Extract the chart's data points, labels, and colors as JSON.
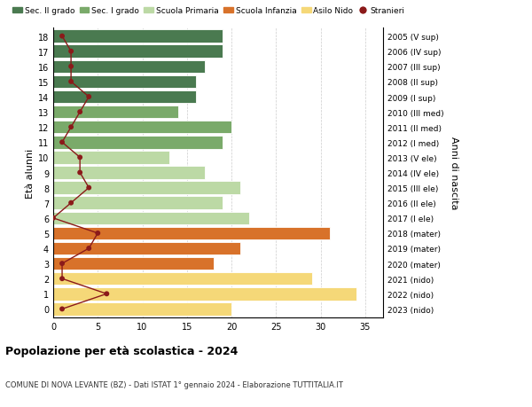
{
  "ages": [
    18,
    17,
    16,
    15,
    14,
    13,
    12,
    11,
    10,
    9,
    8,
    7,
    6,
    5,
    4,
    3,
    2,
    1,
    0
  ],
  "right_labels": [
    "2005 (V sup)",
    "2006 (IV sup)",
    "2007 (III sup)",
    "2008 (II sup)",
    "2009 (I sup)",
    "2010 (III med)",
    "2011 (II med)",
    "2012 (I med)",
    "2013 (V ele)",
    "2014 (IV ele)",
    "2015 (III ele)",
    "2016 (II ele)",
    "2017 (I ele)",
    "2018 (mater)",
    "2019 (mater)",
    "2020 (mater)",
    "2021 (nido)",
    "2022 (nido)",
    "2023 (nido)"
  ],
  "bar_values": [
    19,
    19,
    17,
    16,
    16,
    14,
    20,
    19,
    13,
    17,
    21,
    19,
    22,
    31,
    21,
    18,
    29,
    34,
    20
  ],
  "bar_colors": [
    "#4a7a50",
    "#4a7a50",
    "#4a7a50",
    "#4a7a50",
    "#4a7a50",
    "#7aaa6a",
    "#7aaa6a",
    "#7aaa6a",
    "#bcd9a5",
    "#bcd9a5",
    "#bcd9a5",
    "#bcd9a5",
    "#bcd9a5",
    "#d8722a",
    "#d8722a",
    "#d8722a",
    "#f5d878",
    "#f5d878",
    "#f5d878"
  ],
  "stranieri_x": [
    1,
    2,
    2,
    2,
    4,
    3,
    2,
    1,
    3,
    3,
    4,
    2,
    0,
    5,
    4,
    1,
    1,
    6,
    1
  ],
  "title": "Popolazione per età scolastica - 2024",
  "subtitle": "COMUNE DI NOVA LEVANTE (BZ) - Dati ISTAT 1° gennaio 2024 - Elaborazione TUTTITALIA.IT",
  "xlabel_ticks": [
    0,
    5,
    10,
    15,
    20,
    25,
    30,
    35
  ],
  "legend_labels": [
    "Sec. II grado",
    "Sec. I grado",
    "Scuola Primaria",
    "Scuola Infanzia",
    "Asilo Nido",
    "Stranieri"
  ],
  "legend_colors": [
    "#4a7a50",
    "#7aaa6a",
    "#bcd9a5",
    "#d8722a",
    "#f5d878",
    "#8b1a1a"
  ],
  "ylabel_left": "Età alunni",
  "ylabel_right": "Anni di nascita",
  "bg_color": "#ffffff",
  "grid_color": "#cccccc",
  "bar_height": 0.85,
  "xlim": [
    0,
    37
  ],
  "stranieri_line_color": "#8b1a1a",
  "stranieri_dot_color": "#8b1a1a"
}
